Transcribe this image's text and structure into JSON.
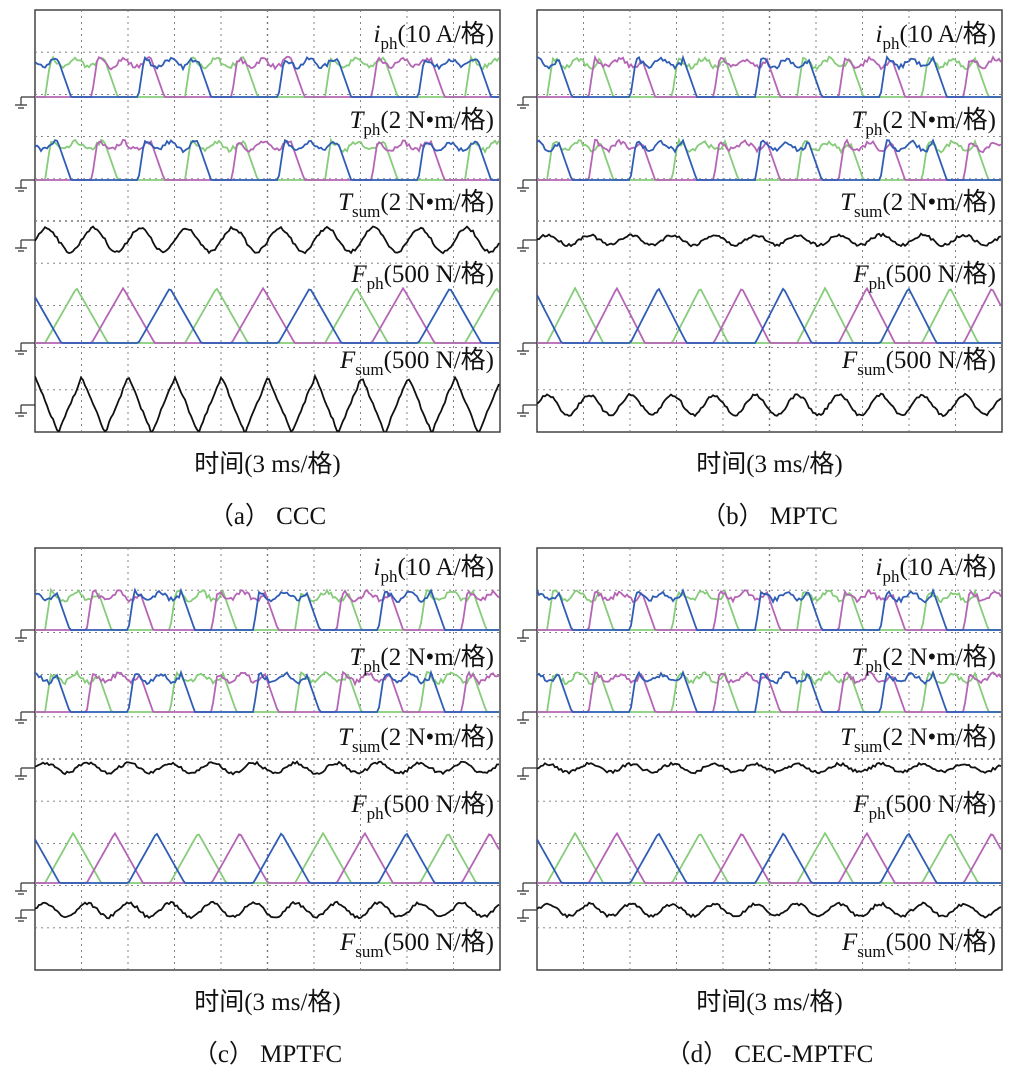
{
  "panels": [
    {
      "channels": [
        {
          "symbol": "i",
          "sub": "ph",
          "unit": "(10 A/格)"
        },
        {
          "symbol": "T",
          "sub": "ph",
          "unit": "(2 N•m/格)"
        },
        {
          "symbol": "T",
          "sub": "sum",
          "unit": "(2 N•m/格)"
        },
        {
          "symbol": "F",
          "sub": "ph",
          "unit": "(500 N/格)"
        },
        {
          "symbol": "F",
          "sub": "sum",
          "unit": "(500 N/格)"
        }
      ],
      "xlabel": "时间(3 ms/格)",
      "caption": "（a） CCC"
    },
    {
      "channels": [
        {
          "symbol": "i",
          "sub": "ph",
          "unit": "(10 A/格)"
        },
        {
          "symbol": "T",
          "sub": "ph",
          "unit": "(2 N•m/格)"
        },
        {
          "symbol": "T",
          "sub": "sum",
          "unit": "(2 N•m/格)"
        },
        {
          "symbol": "F",
          "sub": "ph",
          "unit": "(500 N/格)"
        },
        {
          "symbol": "F",
          "sub": "sum",
          "unit": "(500 N/格)"
        }
      ],
      "xlabel": "时间(3 ms/格)",
      "caption": "（b） MPTC"
    },
    {
      "channels": [
        {
          "symbol": "i",
          "sub": "ph",
          "unit": "(10 A/格)"
        },
        {
          "symbol": "T",
          "sub": "ph",
          "unit": "(2 N•m/格)"
        },
        {
          "symbol": "T",
          "sub": "sum",
          "unit": "(2 N•m/格)"
        },
        {
          "symbol": "F",
          "sub": "ph",
          "unit": "(500 N/格)"
        },
        {
          "symbol": "F",
          "sub": "sum",
          "unit": "(500 N/格)"
        }
      ],
      "xlabel": "时间(3 ms/格)",
      "caption": "（c） MPTFC"
    },
    {
      "channels": [
        {
          "symbol": "i",
          "sub": "ph",
          "unit": "(10 A/格)"
        },
        {
          "symbol": "T",
          "sub": "ph",
          "unit": "(2 N•m/格)"
        },
        {
          "symbol": "T",
          "sub": "sum",
          "unit": "(2 N•m/格)"
        },
        {
          "symbol": "F",
          "sub": "ph",
          "unit": "(500 N/格)"
        },
        {
          "symbol": "F",
          "sub": "sum",
          "unit": "(500 N/格)"
        }
      ],
      "xlabel": "时间(3 ms/格)",
      "caption": "（d） CEC-MPTFC"
    }
  ]
}
